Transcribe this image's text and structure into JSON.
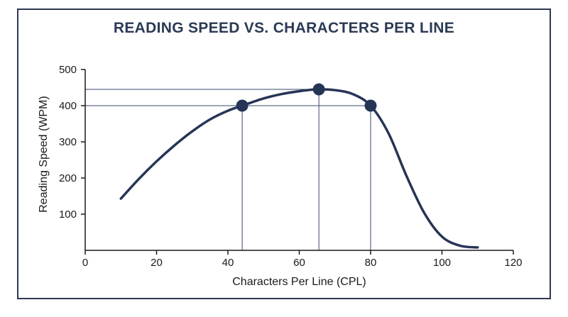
{
  "chart_data": {
    "type": "line",
    "title": "READING SPEED VS. CHARACTERS PER LINE",
    "xlabel": "Characters Per Line (CPL)",
    "ylabel": "Reading Speed (WPM)",
    "xlim": [
      0,
      120
    ],
    "ylim": [
      0,
      500
    ],
    "xticks": [
      0,
      20,
      40,
      60,
      80,
      100,
      120
    ],
    "yticks": [
      100,
      200,
      300,
      400,
      500
    ],
    "grid": false,
    "curve": {
      "x": [
        10,
        15,
        20,
        25,
        30,
        35,
        40,
        44,
        50,
        55,
        60,
        65,
        70,
        75,
        80,
        85,
        90,
        95,
        100,
        105,
        110
      ],
      "y": [
        143,
        197,
        246,
        290,
        329,
        362,
        386,
        400,
        420,
        432,
        440,
        445,
        443,
        432,
        400,
        324,
        207,
        104,
        38,
        13,
        8
      ]
    },
    "highlight_points": [
      {
        "x": 44,
        "y": 400
      },
      {
        "x": 65.5,
        "y": 445
      },
      {
        "x": 80,
        "y": 400
      }
    ],
    "colors": {
      "curve": "#263556",
      "guide": "#3a4a6a",
      "axis": "#1a1a1a",
      "title": "#2b3a55"
    }
  }
}
